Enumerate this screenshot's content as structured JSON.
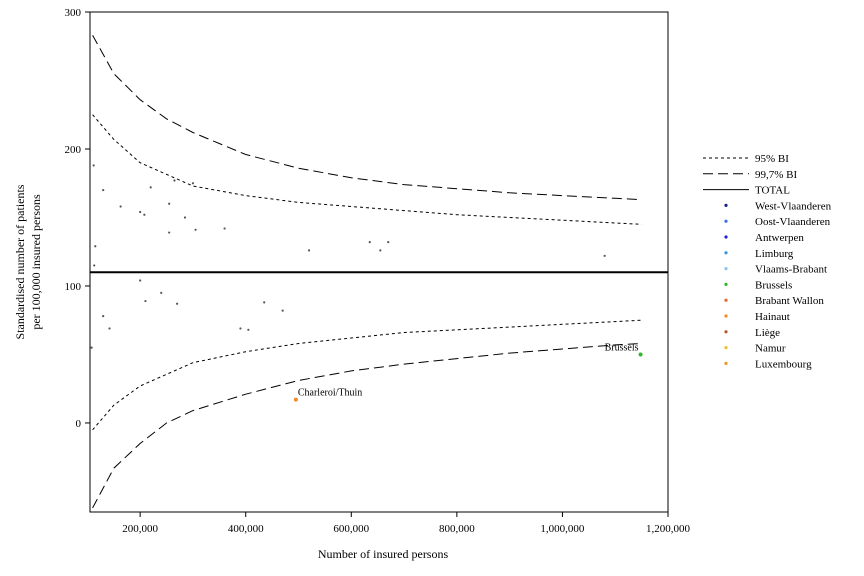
{
  "chart_data": {
    "type": "scatter",
    "xlabel": "Number of insured persons",
    "ylabel_lines": [
      "Standardised number of patients",
      "per 100,000 insured persons"
    ],
    "xlim": [
      105000,
      1200000
    ],
    "ylim": [
      -65,
      300
    ],
    "x_ticks": [
      200000,
      400000,
      600000,
      800000,
      1000000,
      1200000
    ],
    "x_tick_labels": [
      "200,000",
      "400,000",
      "600,000",
      "800,000",
      "1,000,000",
      "1,200,000"
    ],
    "y_ticks": [
      0,
      100,
      200,
      300
    ],
    "y_tick_labels": [
      "0",
      "100",
      "200",
      "300"
    ],
    "grid": false,
    "legend_position": "right",
    "total": 110,
    "ci95": {
      "x": [
        110000,
        150000,
        200000,
        300000,
        400000,
        500000,
        600000,
        700000,
        800000,
        900000,
        1000000,
        1100000,
        1150000
      ],
      "upper": [
        225,
        207,
        190,
        173,
        166,
        161,
        158,
        155,
        152,
        150,
        148,
        146,
        145
      ],
      "lower": [
        -5,
        13,
        27,
        44,
        52,
        58,
        62,
        66,
        68,
        70,
        72,
        74,
        75
      ]
    },
    "ci997": {
      "x": [
        110000,
        150000,
        200000,
        250000,
        300000,
        400000,
        500000,
        600000,
        700000,
        800000,
        900000,
        1000000,
        1100000,
        1150000
      ],
      "upper": [
        283,
        255,
        236,
        222,
        212,
        196,
        186,
        179,
        174,
        171,
        168,
        166,
        164,
        163
      ],
      "lower": [
        -62,
        -33,
        -15,
        0,
        9,
        21,
        31,
        38,
        43,
        47,
        51,
        54,
        57,
        58
      ]
    },
    "lines_legend": [
      {
        "label": "95% BI",
        "dash": "3,3"
      },
      {
        "label": "99,7% BI",
        "dash": "10,5"
      },
      {
        "label": "TOTAL",
        "dash": ""
      }
    ],
    "provinces": [
      {
        "name": "West-Vlaanderen",
        "color": "#1a237e"
      },
      {
        "name": "Oost-Vlaanderen",
        "color": "#3d6fe0"
      },
      {
        "name": "Antwerpen",
        "color": "#1f1fd6"
      },
      {
        "name": "Limburg",
        "color": "#2f93e0"
      },
      {
        "name": "Vlaams-Brabant",
        "color": "#8cc4f0"
      },
      {
        "name": "Brussels",
        "color": "#2db82d"
      },
      {
        "name": "Brabant Wallon",
        "color": "#e06a2a"
      },
      {
        "name": "Hainaut",
        "color": "#f08a2a"
      },
      {
        "name": "Liège",
        "color": "#b5552a"
      },
      {
        "name": "Namur",
        "color": "#f0c020"
      },
      {
        "name": "Luxembourg",
        "color": "#e8962a"
      }
    ],
    "points": [
      {
        "x": 112000,
        "y": 188,
        "color": "#555555"
      },
      {
        "x": 115000,
        "y": 129,
        "color": "#555555"
      },
      {
        "x": 113000,
        "y": 115,
        "color": "#555555"
      },
      {
        "x": 130000,
        "y": 170,
        "color": "#555555"
      },
      {
        "x": 163000,
        "y": 158,
        "color": "#555555"
      },
      {
        "x": 200000,
        "y": 154,
        "color": "#555555"
      },
      {
        "x": 208000,
        "y": 152,
        "color": "#555555"
      },
      {
        "x": 220000,
        "y": 172,
        "color": "#555555"
      },
      {
        "x": 255000,
        "y": 160,
        "color": "#555555"
      },
      {
        "x": 265000,
        "y": 177,
        "color": "#555555"
      },
      {
        "x": 285000,
        "y": 150,
        "color": "#555555"
      },
      {
        "x": 300000,
        "y": 175,
        "color": "#555555"
      },
      {
        "x": 255000,
        "y": 139,
        "color": "#555555"
      },
      {
        "x": 305000,
        "y": 141,
        "color": "#555555"
      },
      {
        "x": 360000,
        "y": 142,
        "color": "#555555"
      },
      {
        "x": 520000,
        "y": 126,
        "color": "#555555"
      },
      {
        "x": 635000,
        "y": 132,
        "color": "#555555"
      },
      {
        "x": 655000,
        "y": 126,
        "color": "#555555"
      },
      {
        "x": 670000,
        "y": 132,
        "color": "#555555"
      },
      {
        "x": 1080000,
        "y": 122,
        "color": "#555555"
      },
      {
        "x": 200000,
        "y": 104,
        "color": "#555555"
      },
      {
        "x": 210000,
        "y": 89,
        "color": "#555555"
      },
      {
        "x": 240000,
        "y": 95,
        "color": "#555555"
      },
      {
        "x": 270000,
        "y": 87,
        "color": "#555555"
      },
      {
        "x": 130000,
        "y": 78,
        "color": "#555555"
      },
      {
        "x": 142000,
        "y": 69,
        "color": "#555555"
      },
      {
        "x": 108000,
        "y": 55,
        "color": "#555555"
      },
      {
        "x": 390000,
        "y": 69,
        "color": "#555555"
      },
      {
        "x": 405000,
        "y": 68,
        "color": "#555555"
      },
      {
        "x": 435000,
        "y": 88,
        "color": "#555555"
      },
      {
        "x": 470000,
        "y": 82,
        "color": "#555555"
      },
      {
        "x": 495000,
        "y": 17,
        "color": "#f08a2a",
        "label": "Charleroi/Thuin"
      },
      {
        "x": 1148000,
        "y": 50,
        "color": "#2db82d",
        "label": "Brussels"
      }
    ]
  }
}
